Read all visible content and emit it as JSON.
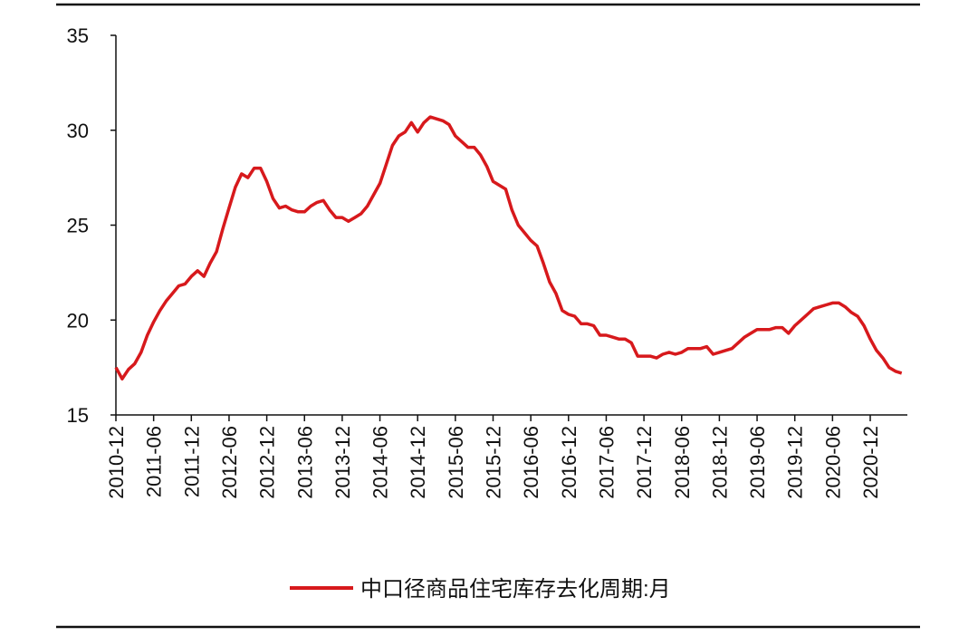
{
  "chart_data": {
    "type": "line",
    "categories": [
      "2010-12",
      null,
      null,
      null,
      null,
      null,
      "2011-06",
      null,
      null,
      null,
      null,
      null,
      "2011-12",
      null,
      null,
      null,
      null,
      null,
      "2012-06",
      null,
      null,
      null,
      null,
      null,
      "2012-12",
      null,
      null,
      null,
      null,
      null,
      "2013-06",
      null,
      null,
      null,
      null,
      null,
      "2013-12",
      null,
      null,
      null,
      null,
      null,
      "2014-06",
      null,
      null,
      null,
      null,
      null,
      "2014-12",
      null,
      null,
      null,
      null,
      null,
      "2015-06",
      null,
      null,
      null,
      null,
      null,
      "2015-12",
      null,
      null,
      null,
      null,
      null,
      "2016-06",
      null,
      null,
      null,
      null,
      null,
      "2016-12",
      null,
      null,
      null,
      null,
      null,
      "2017-06",
      null,
      null,
      null,
      null,
      null,
      "2017-12",
      null,
      null,
      null,
      null,
      null,
      "2018-06",
      null,
      null,
      null,
      null,
      null,
      "2018-12",
      null,
      null,
      null,
      null,
      null,
      "2019-06",
      null,
      null,
      null,
      null,
      null,
      "2019-12",
      null,
      null,
      null,
      null,
      null,
      "2020-06",
      null,
      null,
      null,
      null,
      null,
      "2020-12",
      null,
      null,
      null,
      null,
      null
    ],
    "series": [
      {
        "name": "中口径商品住宅库存去化周期:月",
        "color": "#d7191c",
        "values": [
          17.5,
          16.9,
          17.4,
          17.7,
          18.3,
          19.2,
          19.9,
          20.5,
          21.0,
          21.4,
          21.8,
          21.9,
          22.3,
          22.6,
          22.3,
          23.0,
          23.6,
          24.8,
          25.9,
          27.0,
          27.7,
          27.5,
          28.0,
          28.0,
          27.3,
          26.4,
          25.9,
          26.0,
          25.8,
          25.7,
          25.7,
          26.0,
          26.2,
          26.3,
          25.8,
          25.4,
          25.4,
          25.2,
          25.4,
          25.6,
          26.0,
          26.6,
          27.2,
          28.2,
          29.2,
          29.7,
          29.9,
          30.4,
          29.9,
          30.4,
          30.7,
          30.6,
          30.5,
          30.3,
          29.7,
          29.4,
          29.1,
          29.1,
          28.7,
          28.1,
          27.3,
          27.1,
          26.9,
          25.8,
          25.0,
          24.6,
          24.2,
          23.9,
          23.0,
          22.0,
          21.4,
          20.5,
          20.3,
          20.2,
          19.8,
          19.8,
          19.7,
          19.2,
          19.2,
          19.1,
          19.0,
          19.0,
          18.8,
          18.1,
          18.1,
          18.1,
          18.0,
          18.2,
          18.3,
          18.2,
          18.3,
          18.5,
          18.5,
          18.5,
          18.6,
          18.2,
          18.3,
          18.4,
          18.5,
          18.8,
          19.1,
          19.3,
          19.5,
          19.5,
          19.5,
          19.6,
          19.6,
          19.3,
          19.7,
          20.0,
          20.3,
          20.6,
          20.7,
          20.8,
          20.9,
          20.9,
          20.7,
          20.4,
          20.2,
          19.7,
          19.0,
          18.4,
          18.0,
          17.5,
          17.3,
          17.2
        ]
      }
    ],
    "ylim": [
      15,
      35
    ],
    "yticks": [
      15,
      20,
      25,
      30,
      35
    ],
    "legend": "bottom"
  }
}
